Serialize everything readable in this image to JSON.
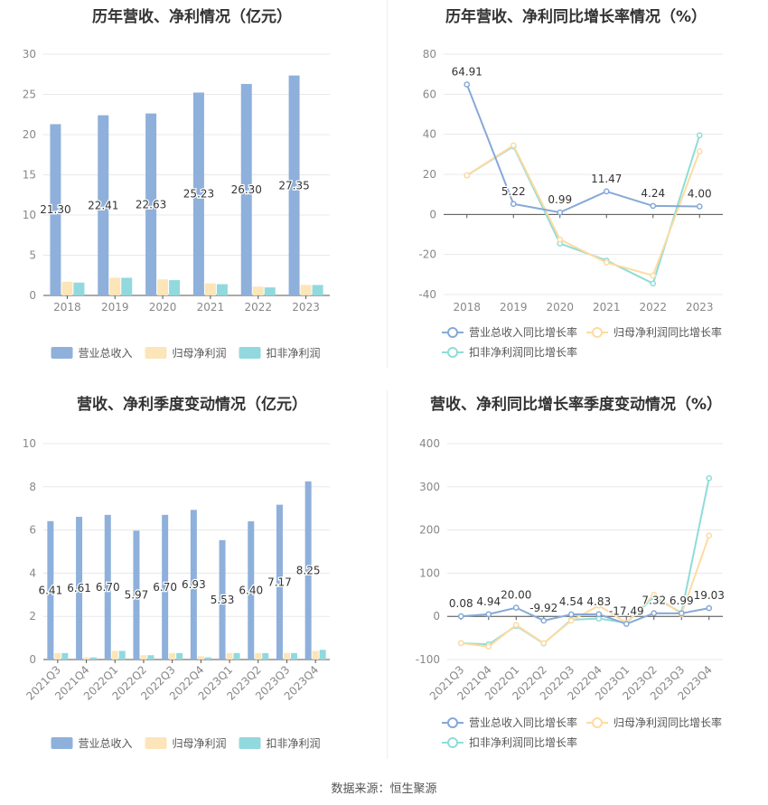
{
  "source_text": "数据来源：恒生聚源",
  "chart_data": [
    {
      "id": "annual-amounts",
      "type": "bar",
      "title": "历年营收、净利情况（亿元）",
      "categories": [
        "2018",
        "2019",
        "2020",
        "2021",
        "2022",
        "2023"
      ],
      "ylim": [
        0,
        30
      ],
      "yticks": [
        0,
        5,
        10,
        15,
        20,
        25,
        30
      ],
      "series": [
        {
          "name": "营业总收入",
          "color": "#8eb0db",
          "values": [
            21.3,
            22.41,
            22.63,
            25.23,
            26.3,
            27.35
          ],
          "labels": [
            "21.30",
            "22.41",
            "22.63",
            "25.23",
            "26.30",
            "27.35"
          ]
        },
        {
          "name": "归母净利润",
          "color": "#fce5b8",
          "values": [
            1.7,
            2.2,
            2.0,
            1.5,
            1.1,
            1.3
          ]
        },
        {
          "name": "扣非净利润",
          "color": "#91d9de",
          "values": [
            1.6,
            2.2,
            1.9,
            1.4,
            1.0,
            1.3
          ]
        }
      ],
      "grid": true,
      "legend": "bottom"
    },
    {
      "id": "annual-growth",
      "type": "line",
      "title": "历年营收、净利同比增长率情况（%）",
      "categories": [
        "2018",
        "2019",
        "2020",
        "2021",
        "2022",
        "2023"
      ],
      "ylim": [
        -40,
        80
      ],
      "yticks": [
        -40,
        -20,
        0,
        20,
        40,
        60,
        80
      ],
      "series": [
        {
          "name": "营业总收入同比增长率",
          "color": "#86a9d6",
          "values": [
            64.91,
            5.22,
            0.99,
            11.47,
            4.24,
            4.0
          ],
          "labels": [
            "64.91",
            "5.22",
            "0.99",
            "11.47",
            "4.24",
            "4.00"
          ]
        },
        {
          "name": "归母净利润同比增长率",
          "color": "#fddba0",
          "values": [
            19.5,
            34.5,
            -12.5,
            -24.0,
            -30.5,
            31.5
          ]
        },
        {
          "name": "扣非净利润同比增长率",
          "color": "#8fdcd8",
          "values": [
            19.5,
            34.0,
            -14.5,
            -23.0,
            -34.5,
            39.5
          ]
        }
      ],
      "grid": true,
      "legend": "bottom"
    },
    {
      "id": "quarterly-amounts",
      "type": "bar",
      "title": "营收、净利季度变动情况（亿元）",
      "categories": [
        "2021Q3",
        "2021Q4",
        "2022Q1",
        "2022Q2",
        "2022Q3",
        "2022Q4",
        "2023Q1",
        "2023Q2",
        "2023Q3",
        "2023Q4"
      ],
      "ylim": [
        0,
        10
      ],
      "yticks": [
        0,
        2,
        4,
        6,
        8,
        10
      ],
      "series": [
        {
          "name": "营业总收入",
          "color": "#8eb0db",
          "values": [
            6.41,
            6.61,
            6.7,
            5.97,
            6.7,
            6.93,
            5.53,
            6.4,
            7.17,
            8.25
          ],
          "labels": [
            "6.41",
            "6.61",
            "6.70",
            "5.97",
            "6.70",
            "6.93",
            "5.53",
            "6.40",
            "7.17",
            "8.25"
          ]
        },
        {
          "name": "归母净利润",
          "color": "#fce5b8",
          "values": [
            0.3,
            0.1,
            0.4,
            0.2,
            0.3,
            0.15,
            0.3,
            0.3,
            0.3,
            0.4
          ]
        },
        {
          "name": "扣非净利润",
          "color": "#91d9de",
          "values": [
            0.3,
            0.1,
            0.4,
            0.2,
            0.3,
            0.1,
            0.3,
            0.3,
            0.3,
            0.45
          ]
        }
      ],
      "grid": true,
      "legend": "bottom"
    },
    {
      "id": "quarterly-growth",
      "type": "line",
      "title": "营收、净利同比增长率季度变动情况（%）",
      "categories": [
        "2021Q3",
        "2021Q4",
        "2022Q1",
        "2022Q2",
        "2022Q3",
        "2022Q4",
        "2023Q1",
        "2023Q2",
        "2023Q3",
        "2023Q4"
      ],
      "ylim": [
        -100,
        400
      ],
      "yticks": [
        -100,
        0,
        100,
        200,
        300,
        400
      ],
      "series": [
        {
          "name": "营业总收入同比增长率",
          "color": "#86a9d6",
          "values": [
            0.08,
            4.94,
            20.0,
            -9.92,
            4.54,
            4.83,
            -17.49,
            7.32,
            6.99,
            19.03
          ],
          "labels": [
            "0.08",
            "4.94",
            "20.00",
            "-9.92",
            "4.54",
            "4.83",
            "-17.49",
            "7.32",
            "6.99",
            "19.03"
          ]
        },
        {
          "name": "归母净利润同比增长率",
          "color": "#fddba0",
          "values": [
            -62,
            -70,
            -20,
            -62,
            -10,
            25,
            -15,
            50,
            5,
            187
          ]
        },
        {
          "name": "扣非净利润同比增长率",
          "color": "#8fdcd8",
          "values": [
            -62,
            -65,
            -22,
            -63,
            -8,
            -5,
            -15,
            45,
            8,
            320
          ]
        }
      ],
      "grid": true,
      "legend": "bottom"
    }
  ]
}
